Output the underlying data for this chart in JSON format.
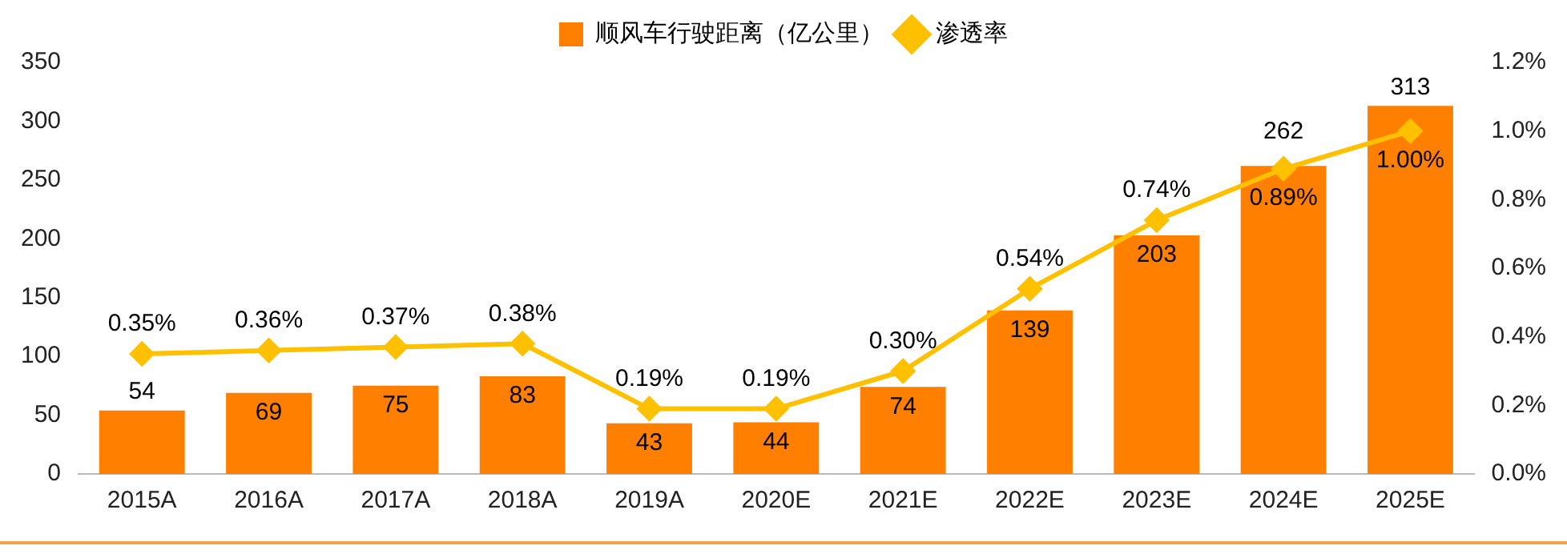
{
  "chart_data": {
    "type": "bar",
    "categories": [
      "2015A",
      "2016A",
      "2017A",
      "2018A",
      "2019A",
      "2020E",
      "2021E",
      "2022E",
      "2023E",
      "2024E",
      "2025E"
    ],
    "series": [
      {
        "name": "顺风车行驶距离（亿公里）",
        "color": "#ff7f00",
        "values": [
          54,
          69,
          75,
          83,
          43,
          44,
          74,
          139,
          203,
          262,
          313
        ],
        "value_labels": [
          "54",
          "69",
          "75",
          "83",
          "43",
          "44",
          "74",
          "139",
          "203",
          "262",
          "313"
        ]
      },
      {
        "name": "渗透率",
        "type": "line",
        "axis": "y2",
        "color": "#ffc000",
        "values": [
          0.35,
          0.36,
          0.37,
          0.38,
          0.19,
          0.19,
          0.3,
          0.54,
          0.74,
          0.89,
          1.0
        ],
        "value_labels": [
          "0.35%",
          "0.36%",
          "0.37%",
          "0.38%",
          "0.19%",
          "0.19%",
          "0.30%",
          "0.54%",
          "0.74%",
          "0.89%",
          "1.00%"
        ]
      }
    ],
    "ylim": [
      0,
      350
    ],
    "yticks": [
      0,
      50,
      100,
      150,
      200,
      250,
      300,
      350
    ],
    "y2lim": [
      0,
      1.2
    ],
    "y2ticks": [
      {
        "value": 0,
        "label": "0.0%"
      },
      {
        "value": 0.2,
        "label": "0.2%"
      },
      {
        "value": 0.4,
        "label": "0.4%"
      },
      {
        "value": 0.6,
        "label": "0.6%"
      },
      {
        "value": 0.8,
        "label": "0.8%"
      },
      {
        "value": 1.0,
        "label": "1.0%"
      },
      {
        "value": 1.2,
        "label": "1.2%"
      }
    ],
    "legend": "top",
    "grid": false,
    "marker": "diamond",
    "line_style": "solid"
  }
}
